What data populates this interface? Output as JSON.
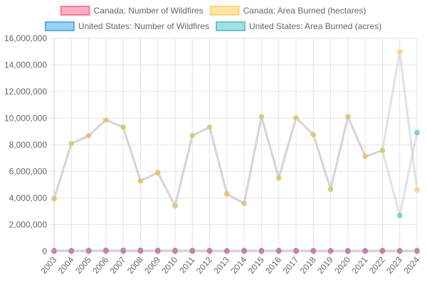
{
  "chart_data": {
    "type": "line",
    "x": [
      "2003",
      "2004",
      "2005",
      "2006",
      "2007",
      "2008",
      "2009",
      "2010",
      "2011",
      "2012",
      "2013",
      "2014",
      "2015",
      "2016",
      "2017",
      "2018",
      "2019",
      "2020",
      "2021",
      "2022",
      "2023",
      "2024"
    ],
    "series": [
      {
        "name": "Canada: Number of Wildfires",
        "values": [
          8200,
          6900,
          7500,
          9900,
          6900,
          6300,
          7100,
          7300,
          4700,
          7900,
          6400,
          5100,
          7100,
          5200,
          5600,
          7000,
          4000,
          5200,
          6400,
          5400,
          6600,
          5800
        ],
        "color": "#ff6384"
      },
      {
        "name": "Canada: Area Burned (hectares)",
        "values": [
          3950000,
          8100000,
          8700000,
          9870000,
          9300000,
          5300000,
          5900000,
          3420000,
          8710000,
          9330000,
          4300000,
          3600000,
          10130000,
          5510000,
          10030000,
          8770000,
          4660000,
          10120000,
          7130000,
          7580000,
          15000000,
          4600000
        ],
        "color": "#ffcd56"
      },
      {
        "name": "United States: Number of Wildfires",
        "values": [
          63600,
          65500,
          66800,
          96400,
          85700,
          79000,
          78800,
          72000,
          74100,
          67800,
          47600,
          63300,
          68200,
          67700,
          71500,
          58100,
          50500,
          59000,
          58900,
          69000,
          56600,
          64900
        ],
        "color": "#36a2eb"
      },
      {
        "name": "United States: Area Burned (acres)",
        "values": [
          3960000,
          8100000,
          8690000,
          9870000,
          9330000,
          5290000,
          5920000,
          3420000,
          8710000,
          9330000,
          4320000,
          3600000,
          10130000,
          5510000,
          10030000,
          8770000,
          4660000,
          10120000,
          7130000,
          7580000,
          2690000,
          8920000
        ],
        "color": "#4bc0c0"
      }
    ],
    "ylim": [
      0,
      16000000
    ],
    "yticks": [
      "0",
      "2,000,000",
      "4,000,000",
      "6,000,000",
      "8,000,000",
      "10,000,000",
      "12,000,000",
      "14,000,000",
      "16,000,000"
    ],
    "grid": true,
    "legend": "top"
  }
}
